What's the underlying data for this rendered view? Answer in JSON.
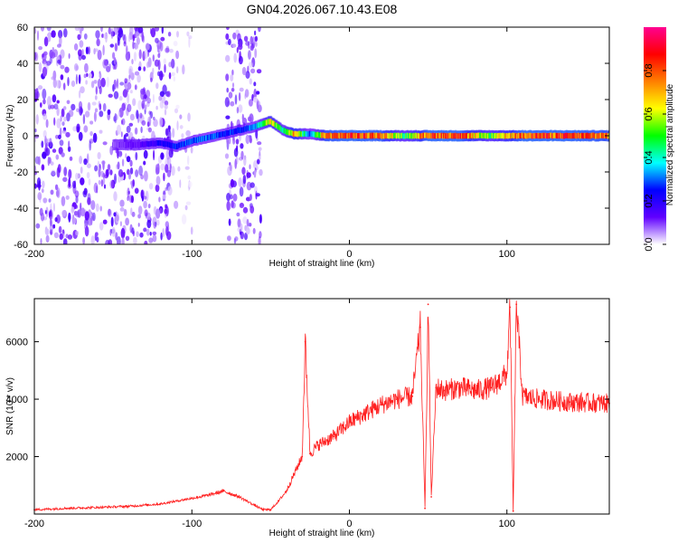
{
  "title": "GN04.2026.067.10.43.E08",
  "chart_data": [
    {
      "type": "heatmap",
      "xlabel": "Height of straight line (km)",
      "ylabel": "Frequency (Hz)",
      "xlim": [
        -200,
        165
      ],
      "ylim": [
        -60,
        60
      ],
      "xticks": [
        -200,
        -100,
        0,
        100
      ],
      "yticks": [
        -60,
        -40,
        -20,
        0,
        20,
        40,
        60
      ],
      "colorbar": {
        "label": "Normalized spectral amplitude",
        "range": [
          0,
          1
        ],
        "ticks": [
          0.0,
          0.2,
          0.4,
          0.6,
          0.8
        ],
        "colors": [
          "#ffffff",
          "#6000ff",
          "#0000ff",
          "#00ffff",
          "#00ff00",
          "#ffff00",
          "#ff7f00",
          "#ff0000",
          "#ff0090"
        ]
      },
      "noise_regions": [
        {
          "x": [
            -200,
            -112
          ],
          "amplitude": 0.12
        },
        {
          "x": [
            -112,
            -100
          ],
          "amplitude": 0.04
        },
        {
          "x": [
            -78,
            -56
          ],
          "amplitude": 0.12
        }
      ],
      "ridge": [
        {
          "x": -150,
          "y": -5,
          "amplitude": 0.1
        },
        {
          "x": -135,
          "y": -5,
          "amplitude": 0.14
        },
        {
          "x": -120,
          "y": -4,
          "amplitude": 0.25
        },
        {
          "x": -110,
          "y": -6,
          "amplitude": 0.3
        },
        {
          "x": -100,
          "y": -3,
          "amplitude": 0.35
        },
        {
          "x": -90,
          "y": -1,
          "amplitude": 0.35
        },
        {
          "x": -80,
          "y": 1,
          "amplitude": 0.3
        },
        {
          "x": -70,
          "y": 3,
          "amplitude": 0.3
        },
        {
          "x": -60,
          "y": 5,
          "amplitude": 0.35
        },
        {
          "x": -50,
          "y": 8,
          "amplitude": 0.75
        },
        {
          "x": -42,
          "y": 3,
          "amplitude": 0.5
        },
        {
          "x": -35,
          "y": 1,
          "amplitude": 0.85
        },
        {
          "x": -25,
          "y": 1,
          "amplitude": 0.3
        },
        {
          "x": -15,
          "y": 0,
          "amplitude": 0.9
        },
        {
          "x": 0,
          "y": 0,
          "amplitude": 0.95
        },
        {
          "x": 20,
          "y": 0,
          "amplitude": 0.92
        },
        {
          "x": 35,
          "y": 0,
          "amplitude": 0.55
        },
        {
          "x": 50,
          "y": 0,
          "amplitude": 0.95
        },
        {
          "x": 70,
          "y": 0,
          "amplitude": 0.95
        },
        {
          "x": 90,
          "y": 0,
          "amplitude": 0.6
        },
        {
          "x": 110,
          "y": 0,
          "amplitude": 0.95
        },
        {
          "x": 140,
          "y": 0,
          "amplitude": 0.95
        },
        {
          "x": 165,
          "y": 0,
          "amplitude": 0.9
        }
      ]
    },
    {
      "type": "line",
      "xlabel": "Height of straight line (km)",
      "ylabel": "SNR (10 * v/v)",
      "xlim": [
        -200,
        165
      ],
      "ylim": [
        0,
        7500
      ],
      "xticks": [
        -200,
        -100,
        0,
        100
      ],
      "yticks": [
        2000,
        4000,
        6000
      ],
      "color": "#ff2020",
      "series": [
        {
          "x": [
            -200,
            -180,
            -160,
            -140,
            -120,
            -100,
            -90,
            -80,
            -70,
            -60,
            -55,
            -50,
            -45,
            -40,
            -35,
            -30,
            -28,
            -25,
            -20,
            -10,
            0,
            10,
            20,
            30,
            40,
            45,
            48,
            50,
            52,
            55,
            60,
            70,
            80,
            90,
            95,
            100,
            102,
            104,
            106,
            110,
            120,
            140,
            165
          ],
          "y": [
            150,
            200,
            230,
            270,
            350,
            550,
            650,
            800,
            600,
            300,
            150,
            150,
            450,
            800,
            1400,
            2000,
            6000,
            2100,
            2400,
            2700,
            3200,
            3500,
            3800,
            4000,
            4100,
            6500,
            200,
            7300,
            600,
            4400,
            4300,
            4400,
            4300,
            4400,
            4600,
            4900,
            7200,
            100,
            7300,
            4100,
            4000,
            3900,
            3850
          ]
        }
      ]
    }
  ]
}
